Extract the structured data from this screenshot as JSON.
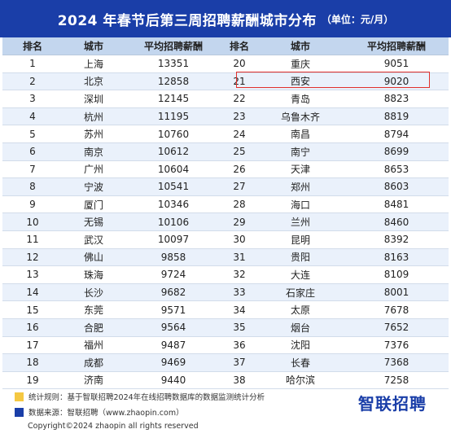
{
  "header": {
    "title": "2024 年春节后第三周招聘薪酬城市分布",
    "unit": "（单位：元/月）"
  },
  "columns": [
    "排名",
    "城市",
    "平均招聘薪酬",
    "排名",
    "城市",
    "平均招聘薪酬"
  ],
  "left_rows": [
    {
      "rank": "1",
      "city": "上海",
      "salary": "13351"
    },
    {
      "rank": "2",
      "city": "北京",
      "salary": "12858"
    },
    {
      "rank": "3",
      "city": "深圳",
      "salary": "12145"
    },
    {
      "rank": "4",
      "city": "杭州",
      "salary": "11195"
    },
    {
      "rank": "5",
      "city": "苏州",
      "salary": "10760"
    },
    {
      "rank": "6",
      "city": "南京",
      "salary": "10612"
    },
    {
      "rank": "7",
      "city": "广州",
      "salary": "10604"
    },
    {
      "rank": "8",
      "city": "宁波",
      "salary": "10541"
    },
    {
      "rank": "9",
      "city": "厦门",
      "salary": "10346"
    },
    {
      "rank": "10",
      "city": "无锡",
      "salary": "10106"
    },
    {
      "rank": "11",
      "city": "武汉",
      "salary": "10097"
    },
    {
      "rank": "12",
      "city": "佛山",
      "salary": "9858"
    },
    {
      "rank": "13",
      "city": "珠海",
      "salary": "9724"
    },
    {
      "rank": "14",
      "city": "长沙",
      "salary": "9682"
    },
    {
      "rank": "15",
      "city": "东莞",
      "salary": "9571"
    },
    {
      "rank": "16",
      "city": "合肥",
      "salary": "9564"
    },
    {
      "rank": "17",
      "city": "福州",
      "salary": "9487"
    },
    {
      "rank": "18",
      "city": "成都",
      "salary": "9469"
    },
    {
      "rank": "19",
      "city": "济南",
      "salary": "9440"
    }
  ],
  "right_rows": [
    {
      "rank": "20",
      "city": "重庆",
      "salary": "9051"
    },
    {
      "rank": "21",
      "city": "西安",
      "salary": "9020"
    },
    {
      "rank": "22",
      "city": "青岛",
      "salary": "8823"
    },
    {
      "rank": "23",
      "city": "乌鲁木齐",
      "salary": "8819"
    },
    {
      "rank": "24",
      "city": "南昌",
      "salary": "8794"
    },
    {
      "rank": "25",
      "city": "南宁",
      "salary": "8699"
    },
    {
      "rank": "26",
      "city": "天津",
      "salary": "8653"
    },
    {
      "rank": "27",
      "city": "郑州",
      "salary": "8603"
    },
    {
      "rank": "28",
      "city": "海口",
      "salary": "8481"
    },
    {
      "rank": "29",
      "city": "兰州",
      "salary": "8460"
    },
    {
      "rank": "30",
      "city": "昆明",
      "salary": "8392"
    },
    {
      "rank": "31",
      "city": "贵阳",
      "salary": "8163"
    },
    {
      "rank": "32",
      "city": "大连",
      "salary": "8109"
    },
    {
      "rank": "33",
      "city": "石家庄",
      "salary": "8001"
    },
    {
      "rank": "34",
      "city": "太原",
      "salary": "7678"
    },
    {
      "rank": "35",
      "city": "烟台",
      "salary": "7652"
    },
    {
      "rank": "36",
      "city": "沈阳",
      "salary": "7376"
    },
    {
      "rank": "37",
      "city": "长春",
      "salary": "7368"
    },
    {
      "rank": "38",
      "city": "哈尔滨",
      "salary": "7258"
    }
  ],
  "footer": {
    "note1": "统计规则：基于智联招聘2024年在线招聘数据库的数据监测统计分析",
    "note2": "数据来源：智联招聘（www.zhaopin.com）",
    "brand": "智联招聘",
    "copyright": "Copyright©2024 zhaopin all rights reserved"
  },
  "colors": {
    "header_bg": "#1a3ea8",
    "table_header_bg": "#c3d6ee",
    "row_alt_bg": "#eaf1fb",
    "highlight_border": "#e0302c",
    "note1_swatch": "#f5c842",
    "note2_swatch": "#1a3ea8",
    "brand_color": "#1a3ea8"
  }
}
